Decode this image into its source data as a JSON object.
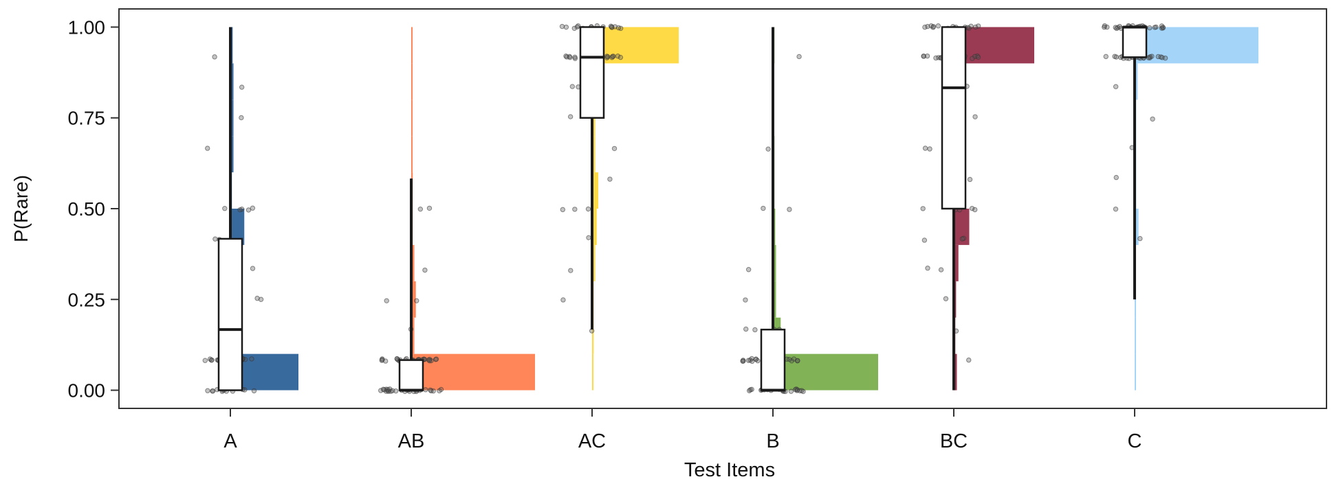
{
  "chart_data": {
    "type": "box",
    "title": "",
    "xlabel": "Test Items",
    "ylabel": "P(Rare)",
    "ylim": [
      -0.05,
      1.05
    ],
    "yticks": [
      0.0,
      0.25,
      0.5,
      0.75,
      1.0
    ],
    "ytick_labels": [
      "0.00",
      "0.25",
      "0.50",
      "0.75",
      "1.00"
    ],
    "grid": false,
    "legend": "none",
    "categories": [
      "A",
      "AB",
      "AC",
      "B",
      "BC",
      "C"
    ],
    "series": [
      {
        "category": "A",
        "color": "#2E6299",
        "box": {
          "q1": 0.0,
          "median": 0.167,
          "q3": 0.417
        },
        "whisker": {
          "low": 0.0,
          "high": 1.0
        },
        "histogram": [
          {
            "y0": 0.0,
            "y1": 0.1,
            "proportion": 0.44
          },
          {
            "y0": 0.1,
            "y1": 0.2,
            "proportion": 0.0
          },
          {
            "y0": 0.2,
            "y1": 0.3,
            "proportion": 0.05
          },
          {
            "y0": 0.3,
            "y1": 0.4,
            "proportion": 0.03
          },
          {
            "y0": 0.4,
            "y1": 0.5,
            "proportion": 0.09
          },
          {
            "y0": 0.5,
            "y1": 0.6,
            "proportion": 0.01
          },
          {
            "y0": 0.6,
            "y1": 0.7,
            "proportion": 0.02
          },
          {
            "y0": 0.7,
            "y1": 0.8,
            "proportion": 0.02
          },
          {
            "y0": 0.8,
            "y1": 0.9,
            "proportion": 0.02
          },
          {
            "y0": 0.9,
            "y1": 1.0,
            "proportion": 0.015
          }
        ]
      },
      {
        "category": "AB",
        "color": "#FF7F50",
        "box": {
          "q1": 0.0,
          "median": 0.0,
          "q3": 0.083
        },
        "whisker": {
          "low": 0.0,
          "high": 0.583
        },
        "histogram": [
          {
            "y0": 0.0,
            "y1": 0.1,
            "proportion": 0.8
          },
          {
            "y0": 0.1,
            "y1": 0.2,
            "proportion": 0.02
          },
          {
            "y0": 0.2,
            "y1": 0.3,
            "proportion": 0.03
          },
          {
            "y0": 0.3,
            "y1": 0.4,
            "proportion": 0.02
          },
          {
            "y0": 0.4,
            "y1": 0.5,
            "proportion": 0.01
          },
          {
            "y0": 0.5,
            "y1": 0.6,
            "proportion": 0.01
          },
          {
            "y0": 0.6,
            "y1": 0.7,
            "proportion": 0.005
          },
          {
            "y0": 0.7,
            "y1": 0.8,
            "proportion": 0.005
          },
          {
            "y0": 0.8,
            "y1": 0.9,
            "proportion": 0.005
          },
          {
            "y0": 0.9,
            "y1": 1.0,
            "proportion": 0.005
          }
        ]
      },
      {
        "category": "AC",
        "color": "#FFD83D",
        "box": {
          "q1": 0.75,
          "median": 0.917,
          "q3": 1.0
        },
        "whisker": {
          "low": 0.167,
          "high": 1.0
        },
        "histogram": [
          {
            "y0": 0.0,
            "y1": 0.1,
            "proportion": 0.005
          },
          {
            "y0": 0.1,
            "y1": 0.2,
            "proportion": 0.01
          },
          {
            "y0": 0.2,
            "y1": 0.3,
            "proportion": 0.01
          },
          {
            "y0": 0.3,
            "y1": 0.4,
            "proportion": 0.02
          },
          {
            "y0": 0.4,
            "y1": 0.5,
            "proportion": 0.03
          },
          {
            "y0": 0.5,
            "y1": 0.6,
            "proportion": 0.04
          },
          {
            "y0": 0.6,
            "y1": 0.7,
            "proportion": 0.02
          },
          {
            "y0": 0.7,
            "y1": 0.8,
            "proportion": 0.02
          },
          {
            "y0": 0.8,
            "y1": 0.9,
            "proportion": 0.04
          },
          {
            "y0": 0.9,
            "y1": 1.0,
            "proportion": 0.56
          }
        ]
      },
      {
        "category": "B",
        "color": "#7AAF4D",
        "box": {
          "q1": 0.0,
          "median": 0.0,
          "q3": 0.167
        },
        "whisker": {
          "low": 0.0,
          "high": 1.0
        },
        "histogram": [
          {
            "y0": 0.0,
            "y1": 0.1,
            "proportion": 0.68
          },
          {
            "y0": 0.1,
            "y1": 0.2,
            "proportion": 0.05
          },
          {
            "y0": 0.2,
            "y1": 0.3,
            "proportion": 0.02
          },
          {
            "y0": 0.3,
            "y1": 0.4,
            "proportion": 0.02
          },
          {
            "y0": 0.4,
            "y1": 0.5,
            "proportion": 0.015
          },
          {
            "y0": 0.5,
            "y1": 0.6,
            "proportion": 0.01
          },
          {
            "y0": 0.6,
            "y1": 0.7,
            "proportion": 0.01
          },
          {
            "y0": 0.7,
            "y1": 0.8,
            "proportion": 0.005
          },
          {
            "y0": 0.8,
            "y1": 0.9,
            "proportion": 0.005
          },
          {
            "y0": 0.9,
            "y1": 1.0,
            "proportion": 0.01
          }
        ]
      },
      {
        "category": "BC",
        "color": "#962F4A",
        "box": {
          "q1": 0.5,
          "median": 0.833,
          "q3": 1.0
        },
        "whisker": {
          "low": 0.0,
          "high": 1.0
        },
        "histogram": [
          {
            "y0": 0.0,
            "y1": 0.1,
            "proportion": 0.02
          },
          {
            "y0": 0.1,
            "y1": 0.2,
            "proportion": 0.01
          },
          {
            "y0": 0.2,
            "y1": 0.3,
            "proportion": 0.015
          },
          {
            "y0": 0.3,
            "y1": 0.4,
            "proportion": 0.03
          },
          {
            "y0": 0.4,
            "y1": 0.5,
            "proportion": 0.1
          },
          {
            "y0": 0.5,
            "y1": 0.6,
            "proportion": 0.03
          },
          {
            "y0": 0.6,
            "y1": 0.7,
            "proportion": 0.03
          },
          {
            "y0": 0.7,
            "y1": 0.8,
            "proportion": 0.03
          },
          {
            "y0": 0.8,
            "y1": 0.9,
            "proportion": 0.03
          },
          {
            "y0": 0.9,
            "y1": 1.0,
            "proportion": 0.52
          }
        ]
      },
      {
        "category": "C",
        "color": "#9FD2F8",
        "box": {
          "q1": 0.917,
          "median": 1.0,
          "q3": 1.0
        },
        "whisker": {
          "low": 0.25,
          "high": 1.0
        },
        "histogram": [
          {
            "y0": 0.0,
            "y1": 0.1,
            "proportion": 0.005
          },
          {
            "y0": 0.1,
            "y1": 0.2,
            "proportion": 0.005
          },
          {
            "y0": 0.2,
            "y1": 0.3,
            "proportion": 0.005
          },
          {
            "y0": 0.3,
            "y1": 0.4,
            "proportion": 0.005
          },
          {
            "y0": 0.4,
            "y1": 0.5,
            "proportion": 0.025
          },
          {
            "y0": 0.5,
            "y1": 0.6,
            "proportion": 0.01
          },
          {
            "y0": 0.6,
            "y1": 0.7,
            "proportion": 0.01
          },
          {
            "y0": 0.7,
            "y1": 0.8,
            "proportion": 0.01
          },
          {
            "y0": 0.8,
            "y1": 0.9,
            "proportion": 0.02
          },
          {
            "y0": 0.9,
            "y1": 1.0,
            "proportion": 0.8
          }
        ]
      }
    ]
  }
}
